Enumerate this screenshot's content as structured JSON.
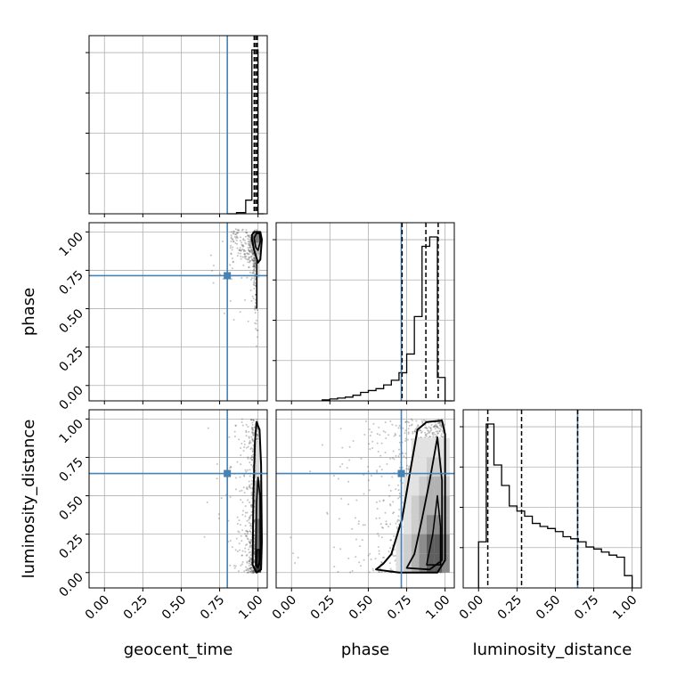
{
  "chart_data": {
    "type": "corner",
    "parameters": [
      "geocent_time",
      "phase",
      "luminosity_distance"
    ],
    "axis_labels": {
      "x": [
        "geocent_time",
        "phase",
        "luminosity_distance"
      ],
      "y": [
        "phase",
        "luminosity_distance"
      ]
    },
    "tick_values": [
      0.0,
      0.25,
      0.5,
      0.75,
      1.0
    ],
    "tick_labels": [
      "0.00",
      "0.25",
      "0.50",
      "0.75",
      "1.00"
    ],
    "ranges": {
      "geocent_time": [
        -0.1,
        1.06
      ],
      "phase": [
        -0.1,
        1.06
      ],
      "luminosity_distance": [
        -0.1,
        1.06
      ]
    },
    "truths": {
      "geocent_time": 0.8,
      "phase": 0.715,
      "luminosity_distance": 0.645
    },
    "quantiles": {
      "geocent_time": [
        0.975,
        0.985,
        0.995
      ],
      "phase": [
        0.72,
        0.875,
        0.955
      ],
      "luminosity_distance": [
        0.06,
        0.28,
        0.645
      ]
    },
    "histograms": {
      "geocent_time": {
        "edges": [
          0.8,
          0.86,
          0.92,
          0.96,
          0.98,
          1.0,
          1.04
        ],
        "counts": [
          0,
          3,
          35,
          420,
          420,
          0
        ]
      },
      "phase": {
        "edges": [
          0.2,
          0.25,
          0.3,
          0.35,
          0.4,
          0.45,
          0.5,
          0.55,
          0.6,
          0.65,
          0.7,
          0.75,
          0.8,
          0.85,
          0.9,
          0.95,
          1.0,
          1.05
        ],
        "counts": [
          1,
          2,
          3,
          4,
          6,
          9,
          11,
          13,
          17,
          22,
          30,
          50,
          90,
          165,
          175,
          25,
          0
        ]
      },
      "luminosity_distance": {
        "edges": [
          0.0,
          0.05,
          0.1,
          0.15,
          0.2,
          0.25,
          0.3,
          0.35,
          0.4,
          0.45,
          0.5,
          0.55,
          0.6,
          0.65,
          0.7,
          0.75,
          0.8,
          0.85,
          0.9,
          0.95,
          1.0
        ],
        "counts": [
          45,
          160,
          120,
          100,
          80,
          75,
          70,
          63,
          60,
          58,
          55,
          50,
          48,
          45,
          40,
          38,
          35,
          32,
          30,
          12
        ]
      }
    },
    "grid": true,
    "colors": {
      "truth": "#4682b4",
      "hist": "#000000",
      "points": "#555555"
    }
  }
}
